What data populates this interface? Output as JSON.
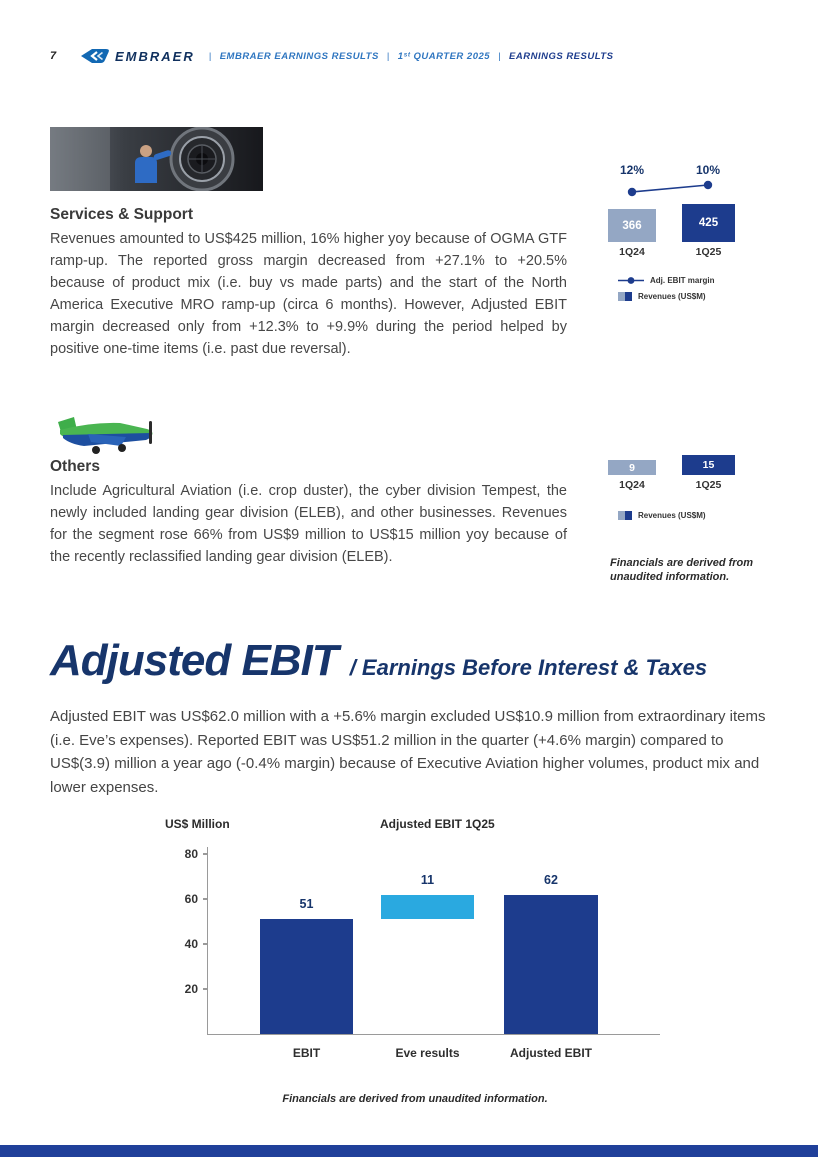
{
  "palette": {
    "navy": "#1d3c8d",
    "slate": "#94a7c4",
    "light_blue": "#2aa9e0",
    "header_blue": "#2f76c0",
    "title_navy": "#17356b"
  },
  "header": {
    "page_number": "7",
    "brand": "EMBRAER",
    "separator": "|",
    "doc_title": "EMBRAER EARNINGS RESULTS",
    "quarter": "1ˢᵗ QUARTER 2025",
    "section": "EARNINGS RESULTS"
  },
  "services": {
    "title": "Services & Support",
    "body": "Revenues amounted to US$425 million, 16% higher yoy because of OGMA GTF ramp-up. The reported gross margin decreased from +27.1% to +20.5% because of product mix (i.e. buy vs made parts) and the start of the North America Executive MRO ramp-up (circa 6 months). However, Adjusted EBIT margin decreased only from +12.3% to +9.9% during the period helped by positive one-time items (i.e. past due reversal)."
  },
  "others": {
    "title": "Others",
    "body": "Include Agricultural Aviation (i.e. crop duster), the cyber division Tempest, the newly included landing gear division (ELEB), and other businesses. Revenues for the segment rose 66% from US$9 million to US$15 million yoy because of the recently reclassified landing gear division (ELEB).",
    "footnote": "Financials are derived from unaudited information."
  },
  "ebit": {
    "title": "Adjusted EBIT",
    "subtitle": "/ Earnings Before Interest & Taxes",
    "body": "Adjusted EBIT was US$62.0 million with a +5.6% margin excluded US$10.9 million from extraordinary items (i.e. Eve’s expenses). Reported EBIT was US$51.2 million in the quarter (+4.6% margin) compared to US$(3.9) million a year ago (-0.4% margin) because of Executive Aviation higher volumes, product mix and lower expenses.",
    "footnote": "Financials are derived from unaudited information."
  },
  "chart_data": [
    {
      "type": "bar",
      "title": "Services & Support — Revenues (US$M) and Adj. EBIT margin",
      "categories": [
        "1Q24",
        "1Q25"
      ],
      "series": [
        {
          "name": "Revenues (US$M)",
          "type": "bar",
          "values": [
            366,
            425
          ]
        },
        {
          "name": "Adj. EBIT margin",
          "type": "line",
          "values": [
            "12%",
            "10%"
          ]
        }
      ],
      "legend_position": "bottom"
    },
    {
      "type": "bar",
      "title": "Others — Revenues (US$M)",
      "categories": [
        "1Q24",
        "1Q25"
      ],
      "series": [
        {
          "name": "Revenues (US$M)",
          "type": "bar",
          "values": [
            9,
            15
          ]
        }
      ],
      "legend_position": "bottom"
    },
    {
      "type": "bar",
      "title": "Adjusted EBIT 1Q25",
      "ylabel": "US$ Million",
      "categories": [
        "EBIT",
        "Eve results",
        "Adjusted EBIT"
      ],
      "values": [
        51,
        11,
        62
      ],
      "base": [
        0,
        51,
        0
      ],
      "ylim": [
        0,
        80
      ],
      "yticks": [
        20,
        40,
        60,
        80
      ],
      "grid": false,
      "legend_position": "none"
    }
  ]
}
